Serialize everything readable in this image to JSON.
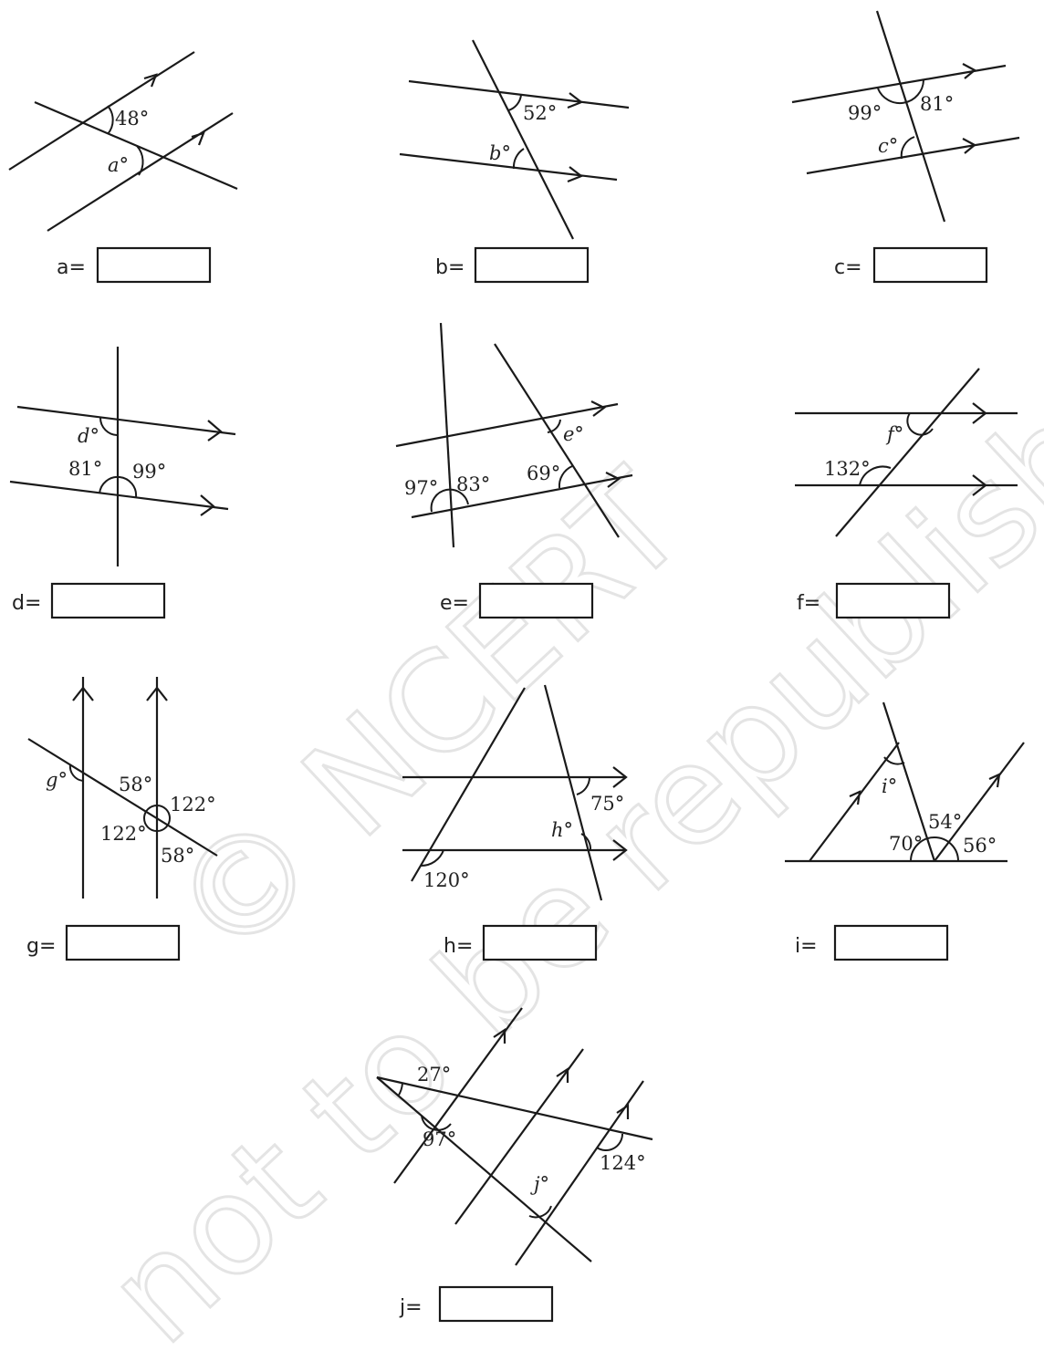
{
  "watermark": "© NCERT not to be republished",
  "problems": [
    {
      "id": "a",
      "answer_label": "a=",
      "angle_labels": [
        "48°",
        "a°"
      ]
    },
    {
      "id": "b",
      "answer_label": "b=",
      "angle_labels": [
        "52°",
        "b°"
      ]
    },
    {
      "id": "c",
      "answer_label": "c=",
      "angle_labels": [
        "99°",
        "81°",
        "c°"
      ]
    },
    {
      "id": "d",
      "answer_label": "d=",
      "angle_labels": [
        "d°",
        "81°",
        "99°"
      ]
    },
    {
      "id": "e",
      "answer_label": "e=",
      "angle_labels": [
        "e°",
        "97°",
        "83°",
        "69°"
      ]
    },
    {
      "id": "f",
      "answer_label": "f=",
      "angle_labels": [
        "f°",
        "132°"
      ]
    },
    {
      "id": "g",
      "answer_label": "g=",
      "angle_labels": [
        "g°",
        "58°",
        "122°",
        "122°",
        "58°"
      ]
    },
    {
      "id": "h",
      "answer_label": "h=",
      "angle_labels": [
        "75°",
        "h°",
        "120°"
      ]
    },
    {
      "id": "i",
      "answer_label": "i=",
      "angle_labels": [
        "i°",
        "54°",
        "70°",
        "56°"
      ]
    },
    {
      "id": "j",
      "answer_label": "j=",
      "angle_labels": [
        "27°",
        "97°",
        "j°",
        "124°"
      ]
    }
  ]
}
